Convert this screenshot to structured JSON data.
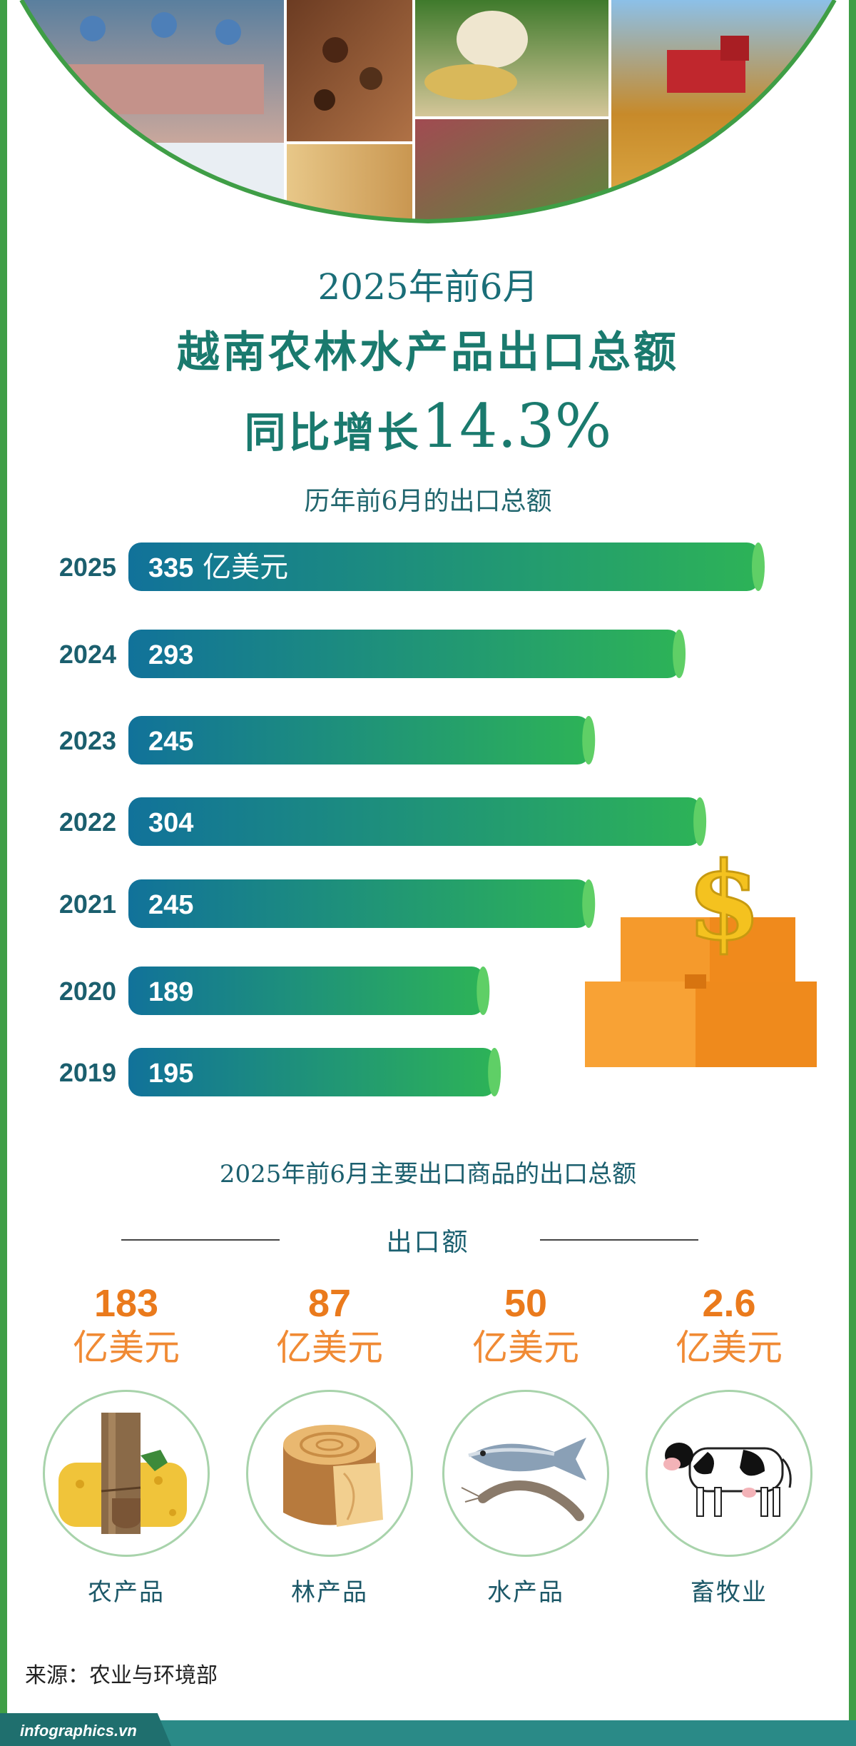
{
  "header": {
    "period": "2025年前6月",
    "headline": "越南农林水产品出口总额",
    "growth_label": "同比增长",
    "growth_value": "14.3%",
    "chart_subtitle": "历年前6月的出口总额"
  },
  "chart_data": {
    "type": "bar",
    "orientation": "horizontal",
    "title": "历年前6月的出口总额",
    "unit": "亿美元",
    "categories": [
      "2025",
      "2024",
      "2023",
      "2022",
      "2021",
      "2020",
      "2019"
    ],
    "values": [
      335,
      293,
      245,
      304,
      245,
      189,
      195
    ],
    "first_label_suffix": "亿美元",
    "colors": {
      "bar_start": "#11729a",
      "bar_end": "#2db357",
      "bar_cap": "#5fcf66",
      "label": "#1b5f6e"
    }
  },
  "section2": {
    "title": "2025年前6月主要出口商品的出口总额",
    "heading": "出口额",
    "categories": [
      {
        "value": "183",
        "unit": "亿美元",
        "name": "农产品",
        "icon": "rubber-tree-icon"
      },
      {
        "value": "87",
        "unit": "亿美元",
        "name": "林产品",
        "icon": "wood-log-icon"
      },
      {
        "value": "50",
        "unit": "亿美元",
        "name": "水产品",
        "icon": "fish-shrimp-icon"
      },
      {
        "value": "2.6",
        "unit": "亿美元",
        "name": "畜牧业",
        "icon": "cow-icon"
      }
    ]
  },
  "source": {
    "label": "来源：",
    "text": "农业与环境部"
  },
  "brand": "infographics.vn",
  "colors": {
    "frame": "#3f9e46",
    "teal": "#1a7a6e",
    "orange": "#ea7a1c",
    "footer": "#2a8a87"
  }
}
